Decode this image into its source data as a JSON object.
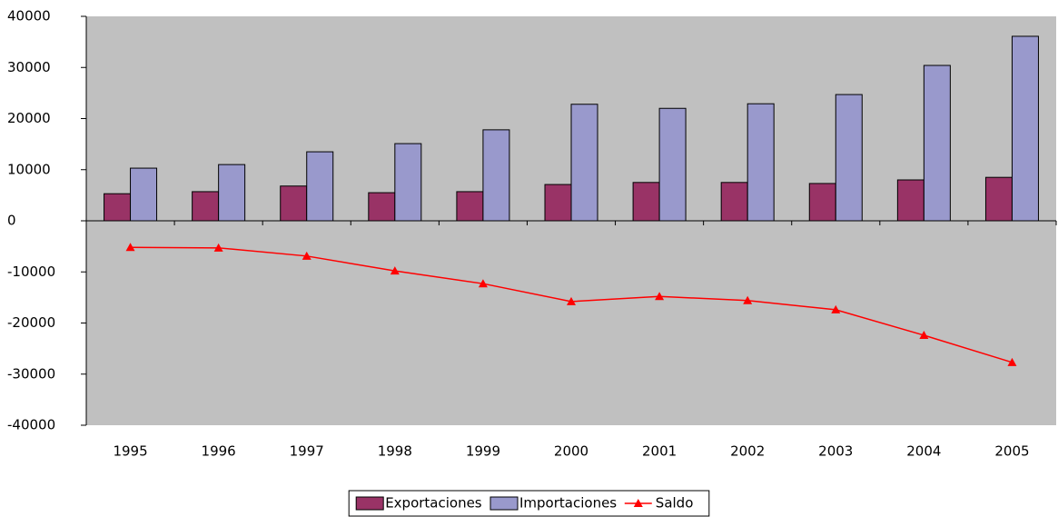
{
  "chart_data": {
    "type": "bar",
    "categories": [
      "1995",
      "1996",
      "1997",
      "1998",
      "1999",
      "2000",
      "2001",
      "2002",
      "2003",
      "2004",
      "2005"
    ],
    "series": [
      {
        "name": "Exportaciones",
        "color": "#993366",
        "values": [
          5300,
          5700,
          6800,
          5500,
          5700,
          7100,
          7500,
          7500,
          7300,
          8000,
          8500
        ]
      },
      {
        "name": "Importaciones",
        "color": "#9999cc",
        "values": [
          10300,
          11000,
          13500,
          15100,
          17800,
          22800,
          22000,
          22900,
          24700,
          30400,
          36100
        ]
      },
      {
        "name": "Saldo",
        "type": "line",
        "color": "#ff0000",
        "values": [
          -5200,
          -5300,
          -6900,
          -9800,
          -12300,
          -15800,
          -14800,
          -15600,
          -17400,
          -22400,
          -27700
        ]
      }
    ],
    "ylim": [
      -40000,
      40000
    ],
    "yticks": [
      40000,
      30000,
      20000,
      10000,
      0,
      -10000,
      -20000,
      -30000,
      -40000
    ],
    "legend": "bottom"
  }
}
